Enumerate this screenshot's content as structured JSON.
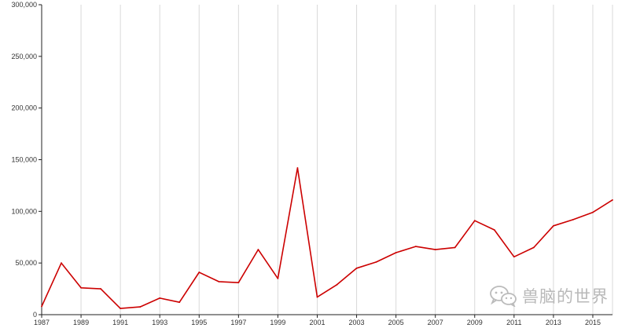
{
  "chart_data": {
    "type": "line",
    "title": "",
    "xlabel": "",
    "ylabel": "",
    "x": [
      1987,
      1988,
      1989,
      1990,
      1991,
      1992,
      1993,
      1994,
      1995,
      1996,
      1997,
      1998,
      1999,
      2000,
      2001,
      2002,
      2003,
      2004,
      2005,
      2006,
      2007,
      2008,
      2009,
      2010,
      2011,
      2012,
      2013,
      2014,
      2015,
      2016
    ],
    "series": [
      {
        "color": "#cc0000",
        "values": [
          8000,
          50000,
          26000,
          25000,
          6000,
          7500,
          16000,
          12000,
          41000,
          32000,
          31000,
          63000,
          35000,
          142000,
          17000,
          29000,
          45000,
          51000,
          60000,
          66000,
          63000,
          65000,
          91000,
          82000,
          56000,
          65000,
          86000,
          92000,
          99000,
          111000
        ]
      }
    ],
    "xlim": [
      1987,
      2016
    ],
    "ylim": [
      0,
      300000
    ],
    "x_tick_labels": [
      "1987",
      "1989",
      "1991",
      "1993",
      "1995",
      "1997",
      "1999",
      "2001",
      "2003",
      "2005",
      "2007",
      "2009",
      "2011",
      "2013",
      "2015"
    ],
    "y_tick_labels": [
      "0",
      "50,000",
      "100,000",
      "150,000",
      "200,000",
      "250,000",
      "300,000"
    ],
    "y_ticks": [
      0,
      50000,
      100000,
      150000,
      200000,
      250000,
      300000
    ],
    "grid": true,
    "colors": {
      "line": "#cc0000",
      "grid": "#d9d9d9",
      "axis": "#222222"
    }
  },
  "watermark": {
    "text": "兽脑的世界",
    "icon": "wechat-icon"
  }
}
